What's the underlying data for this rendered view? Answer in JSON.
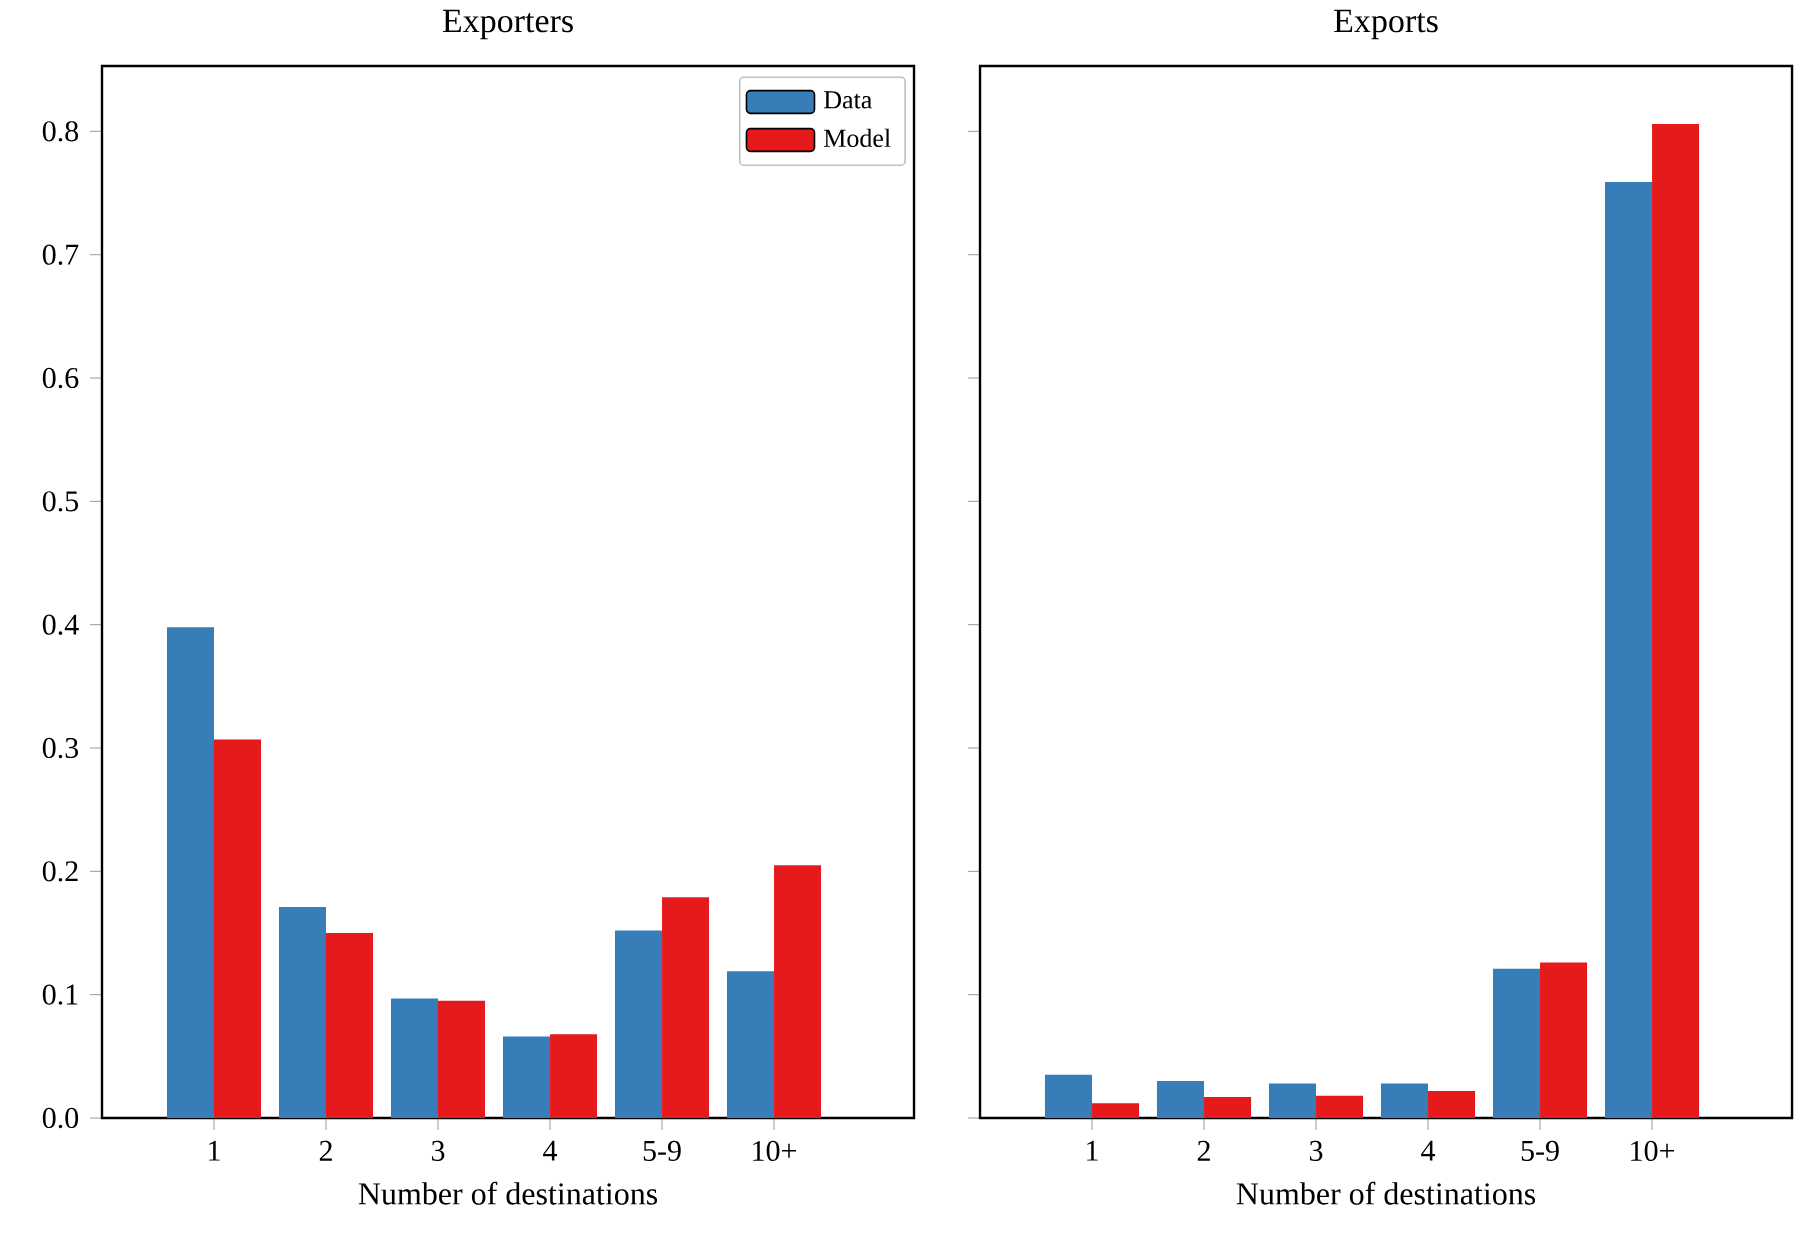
{
  "chart_data": [
    {
      "type": "bar",
      "title": "Exporters",
      "xlabel": "Number of destinations",
      "categories": [
        "1",
        "2",
        "3",
        "4",
        "5-9",
        "10+"
      ],
      "series": [
        {
          "name": "Data",
          "color": "#377eb8",
          "values": [
            0.398,
            0.171,
            0.097,
            0.066,
            0.152,
            0.119
          ]
        },
        {
          "name": "Model",
          "color": "#e41a1c",
          "values": [
            0.307,
            0.15,
            0.095,
            0.068,
            0.179,
            0.205
          ]
        }
      ],
      "ylim": [
        0,
        0.853
      ],
      "yticks": [
        {
          "value": 0,
          "label": "0.0"
        },
        {
          "value": 0.1,
          "label": "0.1"
        },
        {
          "value": 0.2,
          "label": "0.2"
        },
        {
          "value": 0.3,
          "label": "0.3"
        },
        {
          "value": 0.4,
          "label": "0.4"
        },
        {
          "value": 0.5,
          "label": "0.5"
        },
        {
          "value": 0.6,
          "label": "0.6"
        },
        {
          "value": 0.7,
          "label": "0.7"
        },
        {
          "value": 0.8,
          "label": "0.8"
        }
      ],
      "legend": "top right"
    },
    {
      "type": "bar",
      "title": "Exports",
      "xlabel": "Number of destinations",
      "categories": [
        "1",
        "2",
        "3",
        "4",
        "5-9",
        "10+"
      ],
      "series": [
        {
          "color": "#377eb8",
          "values": [
            0.035,
            0.03,
            0.028,
            0.028,
            0.121,
            0.759
          ]
        },
        {
          "color": "#e41a1c",
          "values": [
            0.012,
            0.017,
            0.018,
            0.022,
            0.126,
            0.806
          ]
        }
      ],
      "ylim": [
        0,
        0.853
      ],
      "yticks": [
        {
          "value": 0,
          "label": null
        },
        {
          "value": 0.1,
          "label": null
        },
        {
          "value": 0.2,
          "label": null
        },
        {
          "value": 0.3,
          "label": null
        },
        {
          "value": 0.4,
          "label": null
        },
        {
          "value": 0.5,
          "label": null
        },
        {
          "value": 0.6,
          "label": null
        },
        {
          "value": 0.7,
          "label": null
        },
        {
          "value": 0.8,
          "label": null
        }
      ],
      "tick_labels": "x"
    }
  ]
}
